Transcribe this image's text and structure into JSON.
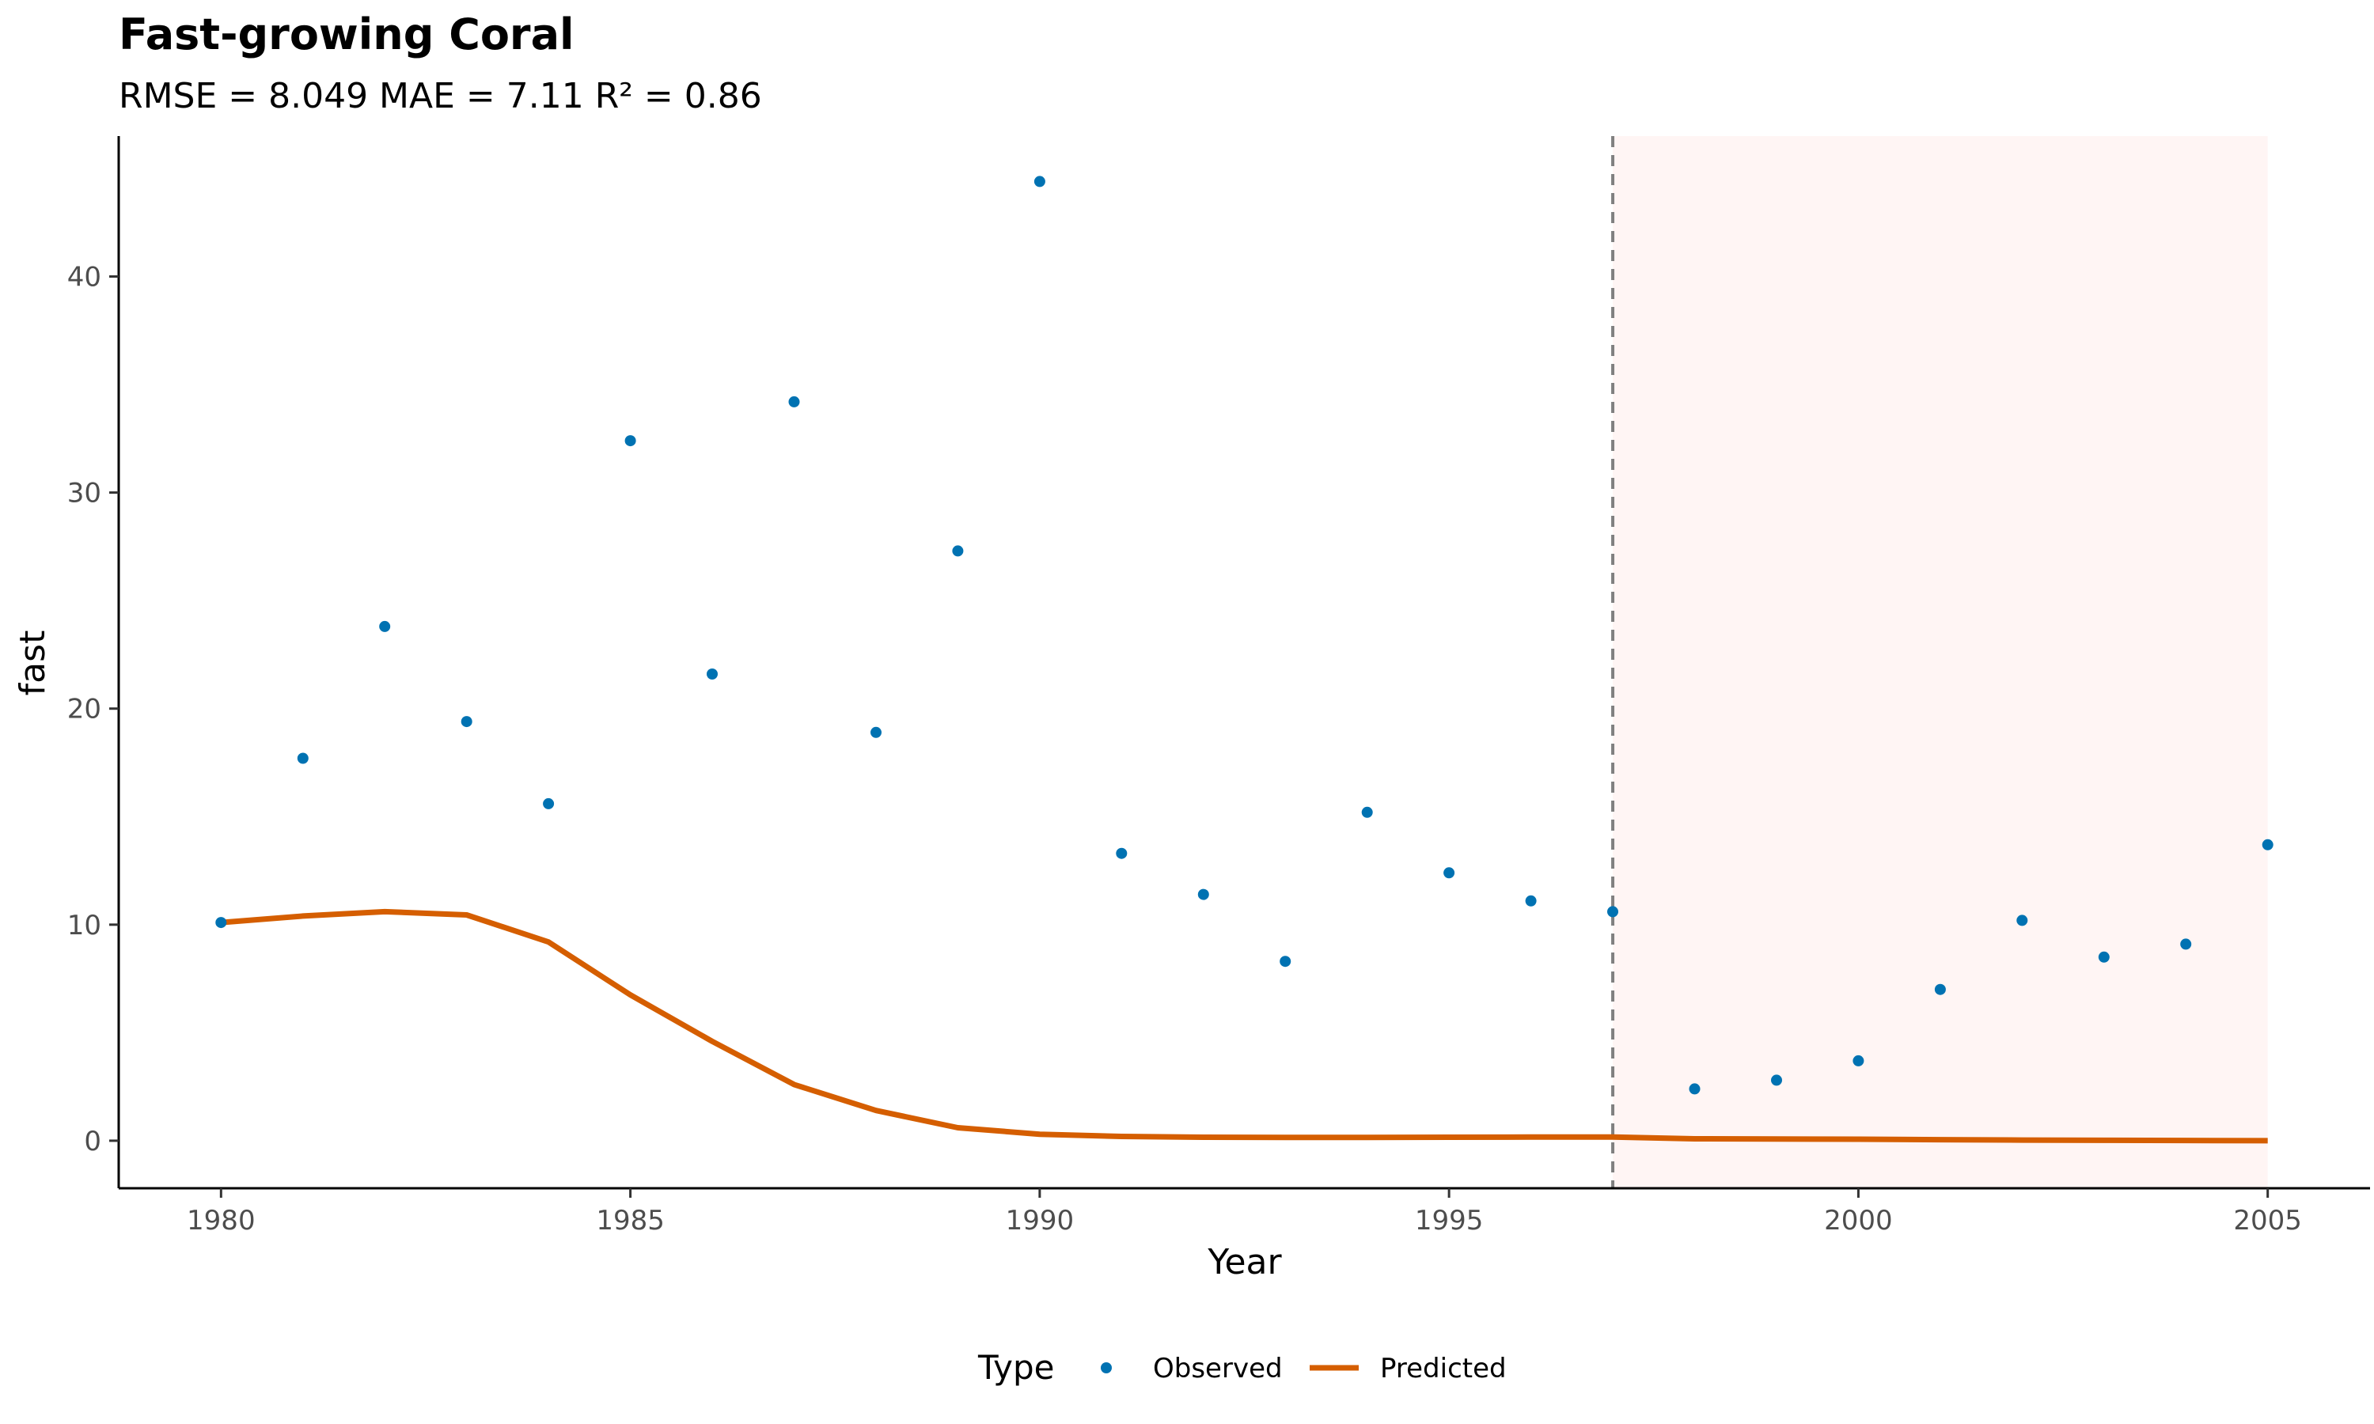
{
  "chart_data": {
    "type": "line",
    "title": "Fast-growing Coral",
    "subtitle": "RMSE = 8.049 MAE = 7.11 R² = 0.86",
    "xlabel": "Year",
    "ylabel": "fast",
    "xlim": [
      1978.75,
      2006.25
    ],
    "ylim": [
      -2.2,
      46.5
    ],
    "xticks": [
      1980,
      1985,
      1990,
      1995,
      2000,
      2005
    ],
    "xtick_labels": [
      "1980",
      "1985",
      "1990",
      "1995",
      "2000",
      "2005"
    ],
    "yticks": [
      0,
      10,
      20,
      30,
      40
    ],
    "ytick_labels": [
      "0",
      "10",
      "20",
      "30",
      "40"
    ],
    "grid": false,
    "legend_position": "bottom",
    "legend_title": "Type",
    "legend_labels": [
      "Observed",
      "Predicted"
    ],
    "highlight_region": {
      "x_start": 1997,
      "x_end": 2005,
      "color": "#fff5f4"
    },
    "vline": {
      "x": 1997,
      "style": "dashed",
      "color": "#808080"
    },
    "series": [
      {
        "name": "Observed",
        "kind": "scatter",
        "color": "#0072b2",
        "x": [
          1980,
          1981,
          1982,
          1983,
          1984,
          1985,
          1986,
          1987,
          1988,
          1989,
          1990,
          1991,
          1992,
          1993,
          1994,
          1995,
          1996,
          1997,
          1998,
          1999,
          2000,
          2001,
          2002,
          2003,
          2004,
          2005
        ],
        "y": [
          10.1,
          17.7,
          23.8,
          19.4,
          15.6,
          32.4,
          21.6,
          34.2,
          18.9,
          27.3,
          44.4,
          13.3,
          11.4,
          8.3,
          15.2,
          12.4,
          11.1,
          10.6,
          2.4,
          2.8,
          3.7,
          7.0,
          10.2,
          8.5,
          9.1,
          13.7
        ]
      },
      {
        "name": "Predicted",
        "kind": "line",
        "color": "#d55e00",
        "x": [
          1980,
          1981,
          1982,
          1983,
          1984,
          1985,
          1986,
          1987,
          1988,
          1989,
          1990,
          1991,
          1992,
          1993,
          1994,
          1995,
          1996,
          1997,
          1998,
          1999,
          2000,
          2001,
          2002,
          2003,
          2004,
          2005
        ],
        "y": [
          10.1,
          10.4,
          10.6,
          10.45,
          9.2,
          6.75,
          4.6,
          2.6,
          1.4,
          0.6,
          0.3,
          0.2,
          0.16,
          0.15,
          0.15,
          0.16,
          0.17,
          0.17,
          0.09,
          0.08,
          0.07,
          0.05,
          0.03,
          0.02,
          0.01,
          0.0
        ]
      }
    ]
  }
}
